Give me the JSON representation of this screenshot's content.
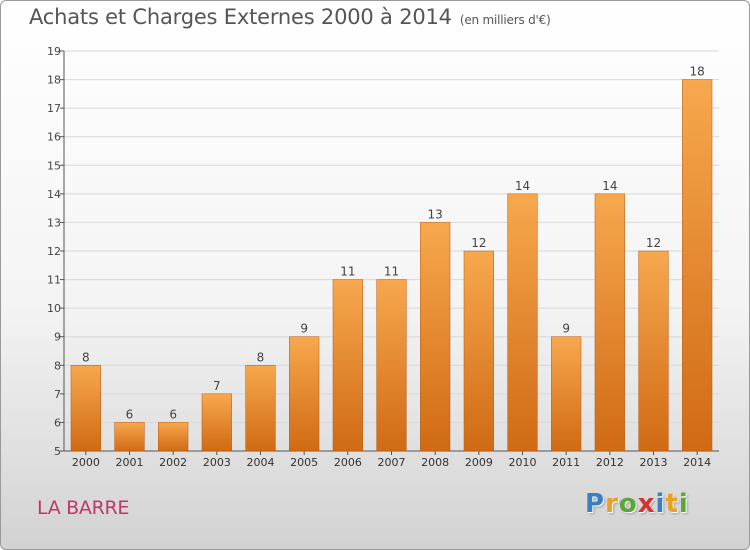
{
  "title": "Achats et Charges Externes 2000 à 2014",
  "subtitle": "(en milliers d'€)",
  "commune": "LA BARRE",
  "logo": {
    "letters": [
      "P",
      "r",
      "o",
      "x",
      "i",
      "t",
      "i"
    ],
    "colors": [
      "#3a7fc1",
      "#e8a020",
      "#58a838",
      "#d8302c",
      "#3a7fc1",
      "#e8a020",
      "#58a838"
    ]
  },
  "colors": {
    "bar_top": "#f7a84e",
    "bar_bottom": "#d06a14",
    "bar_edge": "#b85a10",
    "grid": "#d8d8d8",
    "axis": "#555555"
  },
  "chart_data": {
    "type": "bar",
    "title": "Achats et Charges Externes 2000 à 2014",
    "subtitle": "(en milliers d'€)",
    "xlabel": "",
    "ylabel": "",
    "categories": [
      "2000",
      "2001",
      "2002",
      "2003",
      "2004",
      "2005",
      "2006",
      "2007",
      "2008",
      "2009",
      "2010",
      "2011",
      "2012",
      "2013",
      "2014"
    ],
    "values": [
      8,
      6,
      6,
      7,
      8,
      9,
      11,
      11,
      13,
      12,
      14,
      9,
      14,
      12,
      18
    ],
    "ylim": [
      5,
      19
    ],
    "yticks": [
      5,
      6,
      7,
      8,
      9,
      10,
      11,
      12,
      13,
      14,
      15,
      16,
      17,
      18,
      19
    ],
    "grid": true,
    "data_labels": true
  }
}
